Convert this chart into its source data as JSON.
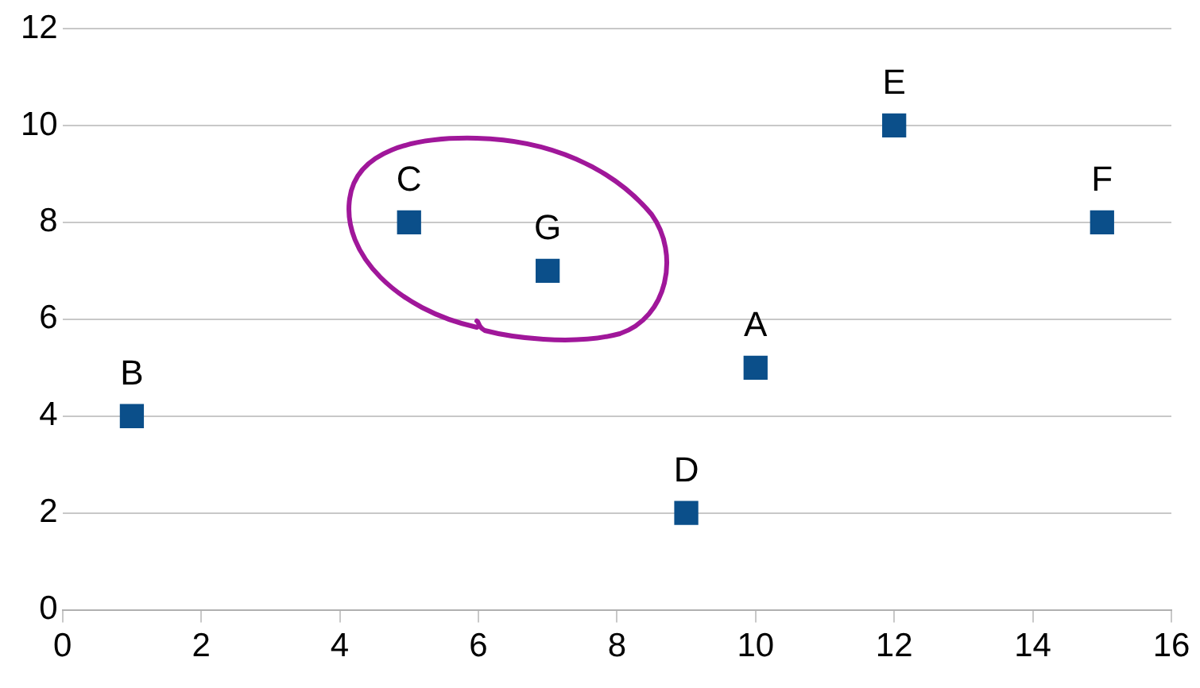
{
  "chart_data": {
    "type": "scatter",
    "series": [
      {
        "color": "#0b4f8a",
        "x": [
          10,
          1,
          5,
          9,
          12,
          15,
          7
        ],
        "values": [
          5,
          4,
          8,
          2,
          10,
          8,
          7
        ]
      }
    ],
    "annotations": [
      {
        "text": "A",
        "x": 10,
        "y": 5
      },
      {
        "text": "B",
        "x": 1,
        "y": 4
      },
      {
        "text": "C",
        "x": 5,
        "y": 8
      },
      {
        "text": "D",
        "x": 9,
        "y": 2
      },
      {
        "text": "E",
        "x": 12,
        "y": 10
      },
      {
        "text": "F",
        "x": 15,
        "y": 8
      },
      {
        "text": "G",
        "x": 7,
        "y": 7
      }
    ],
    "xlim": [
      0,
      16
    ],
    "xticks": [
      0,
      2,
      4,
      6,
      8,
      10,
      12,
      14,
      16
    ],
    "ylim": [
      0,
      12
    ],
    "yticks": [
      0,
      2,
      4,
      6,
      8,
      10,
      12
    ],
    "grid": "y",
    "marker": "square",
    "legend": false
  }
}
